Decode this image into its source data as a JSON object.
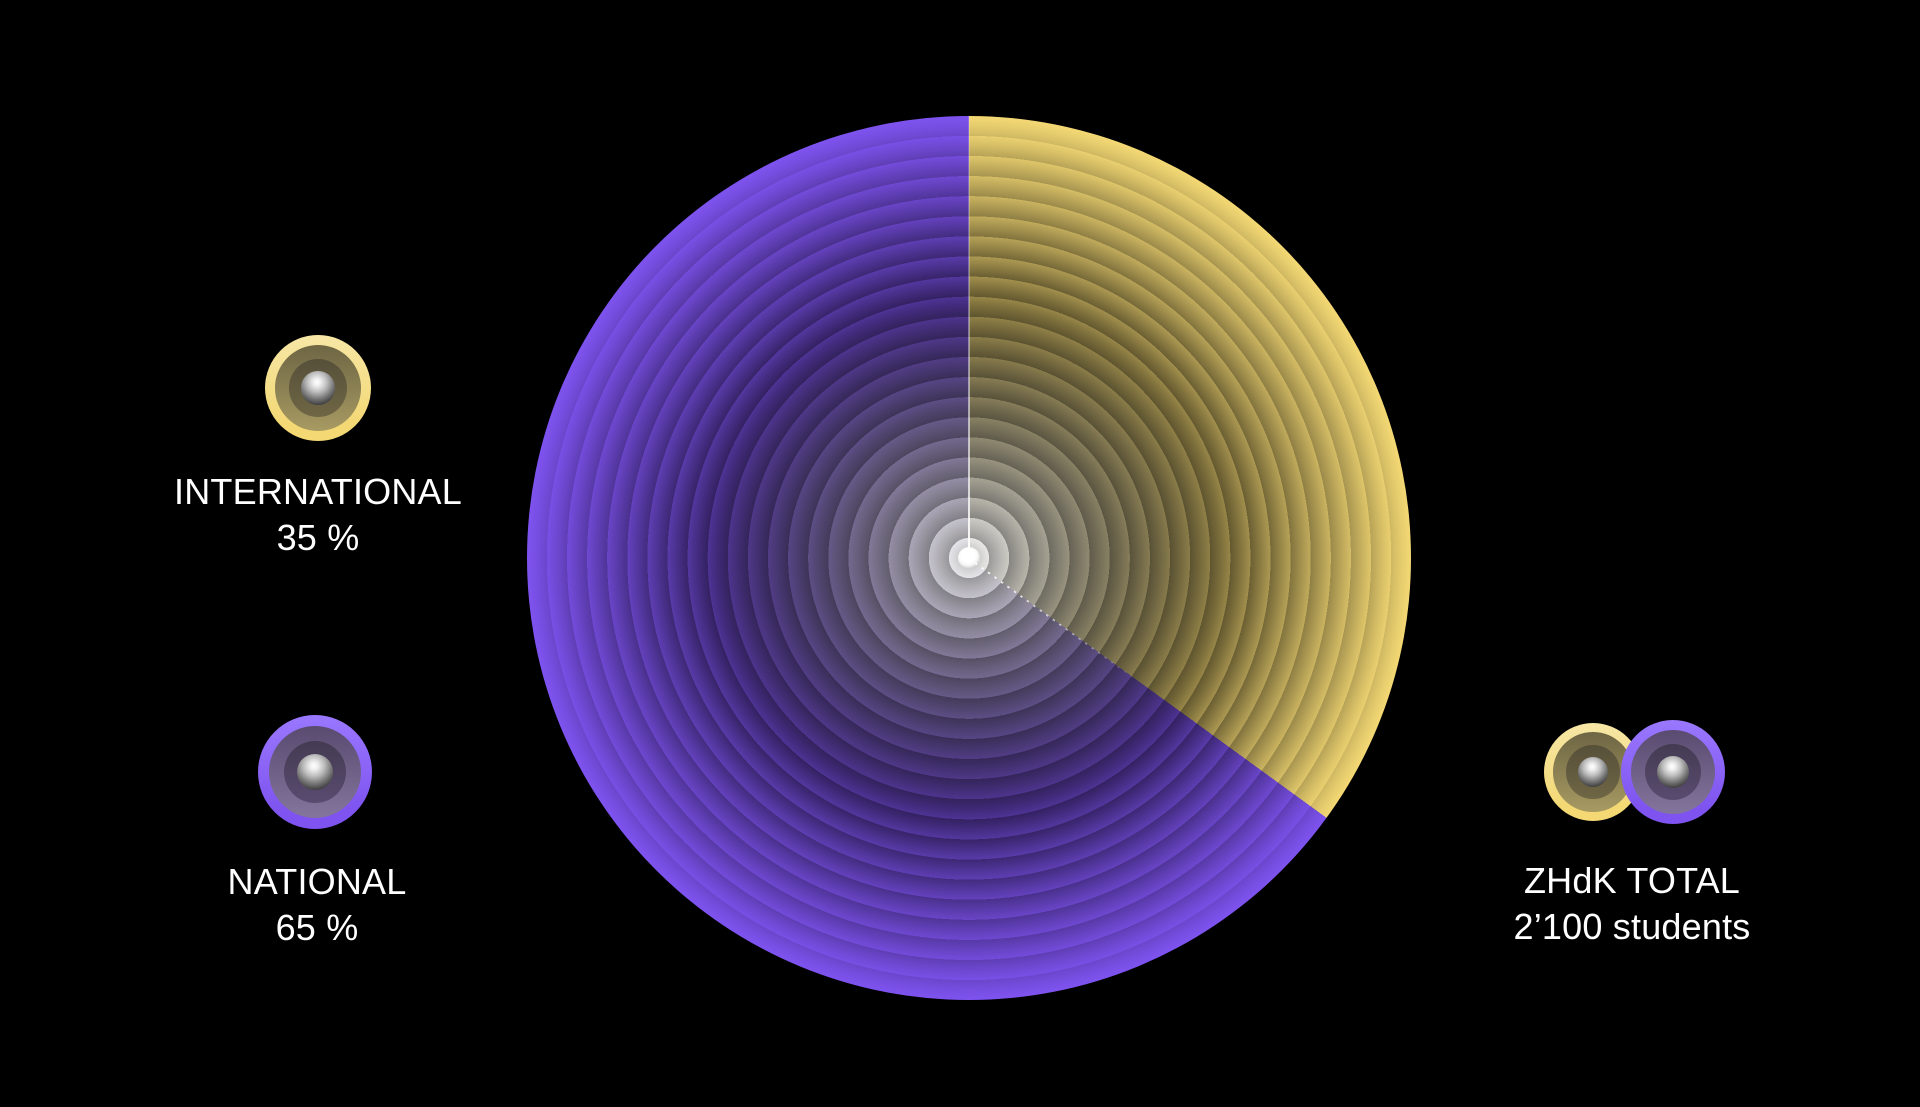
{
  "chart_data": {
    "type": "pie",
    "categories": [
      "INTERNATIONAL",
      "NATIONAL"
    ],
    "values": [
      35,
      65
    ],
    "unit": "%",
    "colors": [
      "#f3d874",
      "#7e53ef"
    ],
    "start_angle_deg": 0,
    "direction": "clockwise",
    "style": "concentric-ring-ripple",
    "title": "",
    "annotation": {
      "label": "ZHdK TOTAL",
      "value": "2’100 students"
    }
  },
  "legend": {
    "international": {
      "label": "INTERNATIONAL",
      "value": "35 %"
    },
    "national": {
      "label": "NATIONAL",
      "value": "65 %"
    }
  },
  "total": {
    "label": "ZHdK TOTAL",
    "value": "2’100 students"
  },
  "icons": {
    "international_marker": "gold-concentric-ball",
    "national_marker": "violet-concentric-ball",
    "total_marker": "gold-and-violet-overlapping-balls"
  },
  "colors": {
    "background": "#000000",
    "text": "#ffffff",
    "gold": "#f3d874",
    "gold_light": "#f7e7a6",
    "gold_mid": "#a79a62",
    "gold_mid_dark": "#6e6644",
    "gold_dark": "#57503a",
    "violet": "#7e53ef",
    "violet_light": "#9a78ff",
    "violet_mid": "#84759c",
    "violet_mid_dark": "#594b70",
    "violet_dark": "#443b52"
  }
}
